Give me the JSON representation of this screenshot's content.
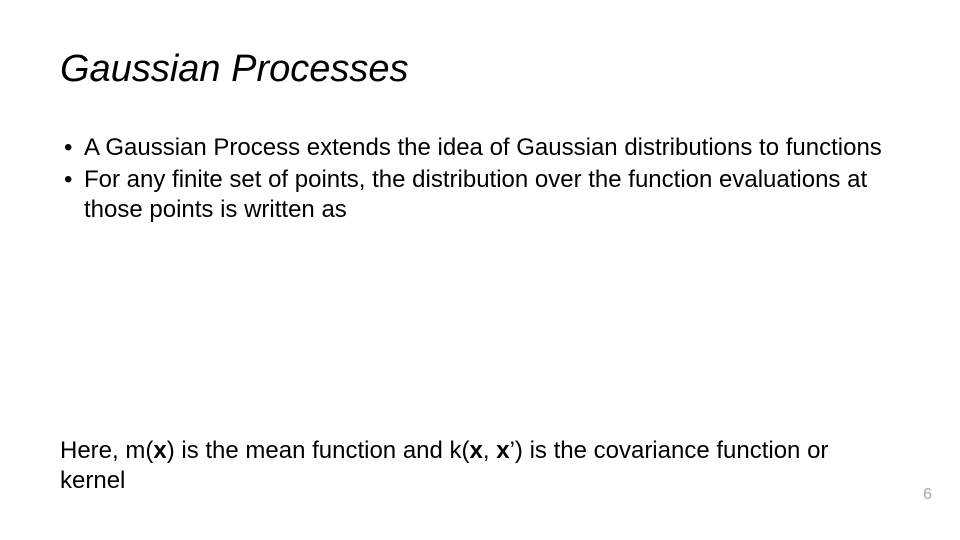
{
  "title": "Gaussian Processes",
  "bullets": [
    "A Gaussian Process extends the idea of Gaussian distributions to functions",
    "For any finite set of points, the distribution over the function evaluations at those points is written as"
  ],
  "footer": {
    "prefix": "Here, m(",
    "x1": "x",
    "mid1": ") is the mean function and k(",
    "x2": "x",
    "mid2": ", ",
    "x3": "x",
    "suffix": "’) is the covariance function or kernel"
  },
  "page_number": "6",
  "style": {
    "title_fontsize": 38,
    "body_fontsize": 24,
    "pagenum_fontsize": 16,
    "title_italic": true,
    "text_color": "#000000",
    "pagenum_color": "#a6a6a6",
    "background_color": "#ffffff"
  }
}
